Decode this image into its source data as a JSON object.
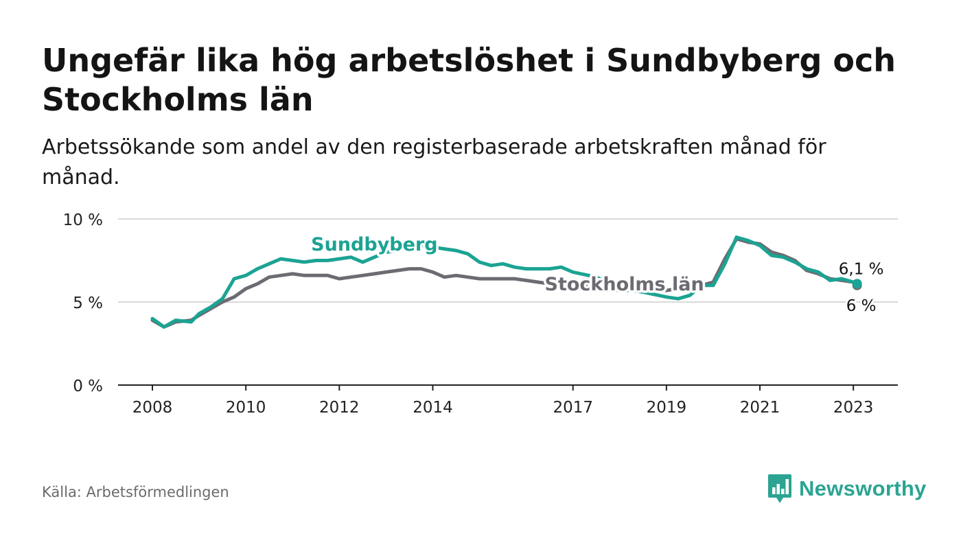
{
  "title": "Ungefär lika hög arbetslöshet i Sundbyberg och Stockholms län",
  "subtitle": "Arbetssökande som andel av den registerbaserade arbetskraften månad för månad.",
  "source": "Källa: Arbetsförmedlingen",
  "brand": {
    "name": "Newsworthy",
    "icon": "newsworthy-logo-icon"
  },
  "colors": {
    "sundbyberg": "#1ba393",
    "stockholm": "#6d6b72",
    "grid": "#d9d9d9",
    "axis": "#222222"
  },
  "chart_data": {
    "type": "line",
    "title": "Ungefär lika hög arbetslöshet i Sundbyberg och Stockholms län",
    "xlabel": "",
    "ylabel": "",
    "xlim": [
      2008.0,
      2023.8
    ],
    "ylim": [
      0,
      10
    ],
    "y_ticks": [
      {
        "value": 0,
        "label": "0 %"
      },
      {
        "value": 5,
        "label": "5 %"
      },
      {
        "value": 10,
        "label": "10 %"
      }
    ],
    "x_ticks": [
      {
        "value": 2008,
        "label": "2008"
      },
      {
        "value": 2010,
        "label": "2010"
      },
      {
        "value": 2012,
        "label": "2012"
      },
      {
        "value": 2014,
        "label": "2014"
      },
      {
        "value": 2017,
        "label": "2017"
      },
      {
        "value": 2019,
        "label": "2019"
      },
      {
        "value": 2021,
        "label": "2021"
      },
      {
        "value": 2023,
        "label": "2023"
      }
    ],
    "series": [
      {
        "name": "Stockholms län",
        "label": "Stockholms län",
        "end_label": "6 %",
        "color": "#6d6b72",
        "points": [
          [
            2008.0,
            3.9
          ],
          [
            2008.25,
            3.5
          ],
          [
            2008.5,
            3.8
          ],
          [
            2008.83,
            3.9
          ],
          [
            2009.0,
            4.2
          ],
          [
            2009.25,
            4.6
          ],
          [
            2009.5,
            5.0
          ],
          [
            2009.75,
            5.3
          ],
          [
            2010.0,
            5.8
          ],
          [
            2010.25,
            6.1
          ],
          [
            2010.5,
            6.5
          ],
          [
            2010.75,
            6.6
          ],
          [
            2011.0,
            6.7
          ],
          [
            2011.25,
            6.6
          ],
          [
            2011.5,
            6.6
          ],
          [
            2011.75,
            6.6
          ],
          [
            2012.0,
            6.4
          ],
          [
            2012.25,
            6.5
          ],
          [
            2012.5,
            6.6
          ],
          [
            2012.75,
            6.7
          ],
          [
            2013.0,
            6.8
          ],
          [
            2013.25,
            6.9
          ],
          [
            2013.5,
            7.0
          ],
          [
            2013.75,
            7.0
          ],
          [
            2014.0,
            6.8
          ],
          [
            2014.25,
            6.5
          ],
          [
            2014.5,
            6.6
          ],
          [
            2014.75,
            6.5
          ],
          [
            2015.0,
            6.4
          ],
          [
            2015.25,
            6.4
          ],
          [
            2015.5,
            6.4
          ],
          [
            2015.75,
            6.4
          ],
          [
            2016.0,
            6.3
          ],
          [
            2016.25,
            6.2
          ],
          [
            2016.5,
            6.1
          ],
          [
            2016.75,
            6.0
          ],
          [
            2017.0,
            6.0
          ],
          [
            2017.5,
            5.9
          ],
          [
            2018.0,
            5.7
          ],
          [
            2018.5,
            5.7
          ],
          [
            2019.0,
            5.7
          ],
          [
            2019.25,
            5.8
          ],
          [
            2019.5,
            5.9
          ],
          [
            2019.75,
            6.0
          ],
          [
            2020.0,
            6.2
          ],
          [
            2020.25,
            7.6
          ],
          [
            2020.5,
            8.8
          ],
          [
            2020.75,
            8.6
          ],
          [
            2021.0,
            8.5
          ],
          [
            2021.25,
            8.0
          ],
          [
            2021.5,
            7.8
          ],
          [
            2021.75,
            7.5
          ],
          [
            2022.0,
            6.9
          ],
          [
            2022.25,
            6.7
          ],
          [
            2022.5,
            6.4
          ],
          [
            2022.75,
            6.3
          ],
          [
            2023.0,
            6.2
          ],
          [
            2023.08,
            6.0
          ]
        ]
      },
      {
        "name": "Sundbyberg",
        "label": "Sundbyberg",
        "end_label": "6,1 %",
        "color": "#1ba393",
        "points": [
          [
            2008.0,
            4.0
          ],
          [
            2008.25,
            3.5
          ],
          [
            2008.5,
            3.9
          ],
          [
            2008.83,
            3.8
          ],
          [
            2009.0,
            4.3
          ],
          [
            2009.25,
            4.7
          ],
          [
            2009.5,
            5.2
          ],
          [
            2009.75,
            6.4
          ],
          [
            2010.0,
            6.6
          ],
          [
            2010.25,
            7.0
          ],
          [
            2010.5,
            7.3
          ],
          [
            2010.75,
            7.6
          ],
          [
            2011.0,
            7.5
          ],
          [
            2011.25,
            7.4
          ],
          [
            2011.5,
            7.5
          ],
          [
            2011.75,
            7.5
          ],
          [
            2012.0,
            7.6
          ],
          [
            2012.25,
            7.7
          ],
          [
            2012.5,
            7.4
          ],
          [
            2012.75,
            7.7
          ],
          [
            2013.0,
            8.0
          ],
          [
            2013.25,
            8.1
          ],
          [
            2013.5,
            8.3
          ],
          [
            2013.75,
            8.4
          ],
          [
            2014.0,
            8.3
          ],
          [
            2014.25,
            8.2
          ],
          [
            2014.5,
            8.1
          ],
          [
            2014.75,
            7.9
          ],
          [
            2015.0,
            7.4
          ],
          [
            2015.25,
            7.2
          ],
          [
            2015.5,
            7.3
          ],
          [
            2015.75,
            7.1
          ],
          [
            2016.0,
            7.0
          ],
          [
            2016.25,
            7.0
          ],
          [
            2016.5,
            7.0
          ],
          [
            2016.75,
            7.1
          ],
          [
            2017.0,
            6.8
          ],
          [
            2017.5,
            6.5
          ],
          [
            2018.0,
            5.8
          ],
          [
            2018.5,
            5.6
          ],
          [
            2019.0,
            5.3
          ],
          [
            2019.25,
            5.2
          ],
          [
            2019.5,
            5.4
          ],
          [
            2019.75,
            6.0
          ],
          [
            2020.0,
            6.0
          ],
          [
            2020.25,
            7.3
          ],
          [
            2020.5,
            8.9
          ],
          [
            2020.75,
            8.7
          ],
          [
            2021.0,
            8.4
          ],
          [
            2021.25,
            7.8
          ],
          [
            2021.5,
            7.7
          ],
          [
            2021.75,
            7.4
          ],
          [
            2022.0,
            7.0
          ],
          [
            2022.25,
            6.8
          ],
          [
            2022.5,
            6.3
          ],
          [
            2022.75,
            6.4
          ],
          [
            2023.0,
            6.2
          ],
          [
            2023.08,
            6.1
          ]
        ]
      }
    ]
  }
}
